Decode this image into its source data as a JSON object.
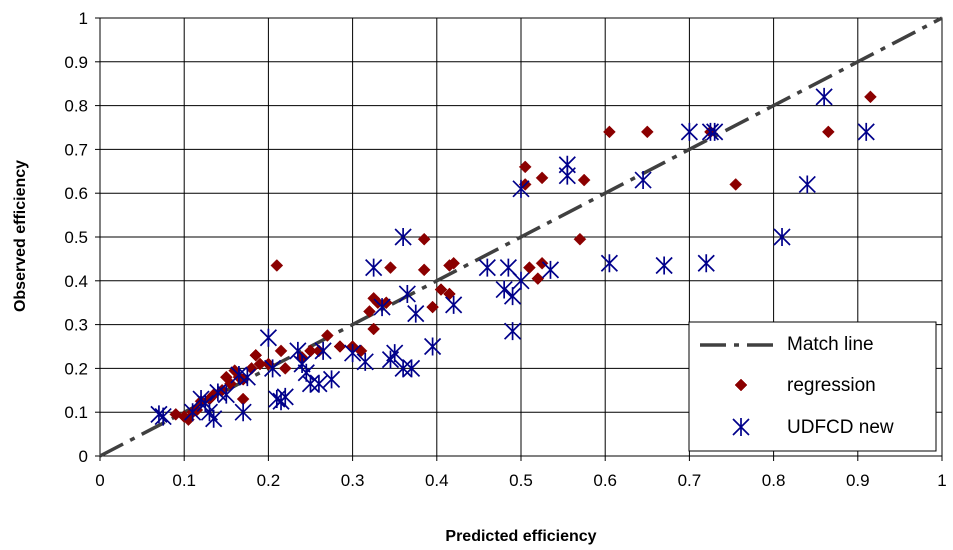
{
  "chart_data": {
    "type": "scatter",
    "title": "",
    "xlabel": "Predicted efficiency",
    "ylabel": "Observed efficiency",
    "xlim": [
      0,
      1
    ],
    "ylim": [
      0,
      1
    ],
    "x_ticks": [
      "0",
      "0.1",
      "0.2",
      "0.3",
      "0.4",
      "0.5",
      "0.6",
      "0.7",
      "0.8",
      "0.9",
      "1"
    ],
    "y_ticks": [
      "0",
      "0.1",
      "0.2",
      "0.3",
      "0.4",
      "0.5",
      "0.6",
      "0.7",
      "0.8",
      "0.9",
      "1"
    ],
    "grid": true,
    "legend_position": "bottom-right",
    "series": [
      {
        "name": "Match line",
        "kind": "line",
        "style": "dash-dot",
        "color": "#404040",
        "points": [
          [
            0,
            0
          ],
          [
            1,
            1
          ]
        ]
      },
      {
        "name": "regression",
        "kind": "marker",
        "marker": "diamond",
        "color": "#8b0000",
        "points": [
          [
            0.09,
            0.095
          ],
          [
            0.1,
            0.09
          ],
          [
            0.105,
            0.083
          ],
          [
            0.11,
            0.1
          ],
          [
            0.115,
            0.105
          ],
          [
            0.12,
            0.125
          ],
          [
            0.13,
            0.13
          ],
          [
            0.135,
            0.14
          ],
          [
            0.145,
            0.15
          ],
          [
            0.15,
            0.18
          ],
          [
            0.155,
            0.165
          ],
          [
            0.16,
            0.195
          ],
          [
            0.165,
            0.18
          ],
          [
            0.17,
            0.175
          ],
          [
            0.17,
            0.13
          ],
          [
            0.18,
            0.2
          ],
          [
            0.185,
            0.23
          ],
          [
            0.19,
            0.21
          ],
          [
            0.2,
            0.21
          ],
          [
            0.21,
            0.435
          ],
          [
            0.215,
            0.24
          ],
          [
            0.22,
            0.2
          ],
          [
            0.24,
            0.225
          ],
          [
            0.25,
            0.24
          ],
          [
            0.26,
            0.24
          ],
          [
            0.27,
            0.275
          ],
          [
            0.285,
            0.25
          ],
          [
            0.3,
            0.25
          ],
          [
            0.31,
            0.24
          ],
          [
            0.32,
            0.33
          ],
          [
            0.325,
            0.36
          ],
          [
            0.325,
            0.29
          ],
          [
            0.33,
            0.35
          ],
          [
            0.34,
            0.35
          ],
          [
            0.345,
            0.43
          ],
          [
            0.385,
            0.425
          ],
          [
            0.385,
            0.495
          ],
          [
            0.395,
            0.34
          ],
          [
            0.405,
            0.38
          ],
          [
            0.415,
            0.435
          ],
          [
            0.415,
            0.37
          ],
          [
            0.42,
            0.44
          ],
          [
            0.505,
            0.66
          ],
          [
            0.505,
            0.62
          ],
          [
            0.51,
            0.43
          ],
          [
            0.52,
            0.405
          ],
          [
            0.525,
            0.635
          ],
          [
            0.525,
            0.44
          ],
          [
            0.57,
            0.495
          ],
          [
            0.575,
            0.63
          ],
          [
            0.605,
            0.74
          ],
          [
            0.65,
            0.74
          ],
          [
            0.725,
            0.74
          ],
          [
            0.755,
            0.62
          ],
          [
            0.865,
            0.74
          ],
          [
            0.915,
            0.82
          ]
        ]
      },
      {
        "name": "UDFCD new",
        "kind": "marker",
        "marker": "asterisk",
        "color": "#00008b",
        "points": [
          [
            0.07,
            0.095
          ],
          [
            0.075,
            0.09
          ],
          [
            0.11,
            0.1
          ],
          [
            0.12,
            0.13
          ],
          [
            0.125,
            0.12
          ],
          [
            0.13,
            0.1
          ],
          [
            0.135,
            0.085
          ],
          [
            0.14,
            0.145
          ],
          [
            0.15,
            0.14
          ],
          [
            0.165,
            0.185
          ],
          [
            0.17,
            0.1
          ],
          [
            0.175,
            0.18
          ],
          [
            0.2,
            0.27
          ],
          [
            0.205,
            0.2
          ],
          [
            0.21,
            0.13
          ],
          [
            0.215,
            0.125
          ],
          [
            0.22,
            0.135
          ],
          [
            0.235,
            0.24
          ],
          [
            0.24,
            0.21
          ],
          [
            0.245,
            0.19
          ],
          [
            0.25,
            0.165
          ],
          [
            0.26,
            0.165
          ],
          [
            0.265,
            0.24
          ],
          [
            0.275,
            0.175
          ],
          [
            0.3,
            0.235
          ],
          [
            0.315,
            0.215
          ],
          [
            0.325,
            0.43
          ],
          [
            0.335,
            0.34
          ],
          [
            0.345,
            0.22
          ],
          [
            0.35,
            0.235
          ],
          [
            0.36,
            0.5
          ],
          [
            0.36,
            0.2
          ],
          [
            0.365,
            0.37
          ],
          [
            0.37,
            0.2
          ],
          [
            0.375,
            0.325
          ],
          [
            0.395,
            0.25
          ],
          [
            0.42,
            0.345
          ],
          [
            0.46,
            0.43
          ],
          [
            0.48,
            0.38
          ],
          [
            0.485,
            0.43
          ],
          [
            0.49,
            0.365
          ],
          [
            0.49,
            0.285
          ],
          [
            0.5,
            0.4
          ],
          [
            0.5,
            0.61
          ],
          [
            0.535,
            0.425
          ],
          [
            0.555,
            0.665
          ],
          [
            0.555,
            0.64
          ],
          [
            0.605,
            0.44
          ],
          [
            0.645,
            0.63
          ],
          [
            0.67,
            0.435
          ],
          [
            0.7,
            0.74
          ],
          [
            0.72,
            0.44
          ],
          [
            0.725,
            0.74
          ],
          [
            0.73,
            0.74
          ],
          [
            0.81,
            0.5
          ],
          [
            0.84,
            0.62
          ],
          [
            0.86,
            0.82
          ],
          [
            0.91,
            0.74
          ]
        ]
      }
    ]
  }
}
